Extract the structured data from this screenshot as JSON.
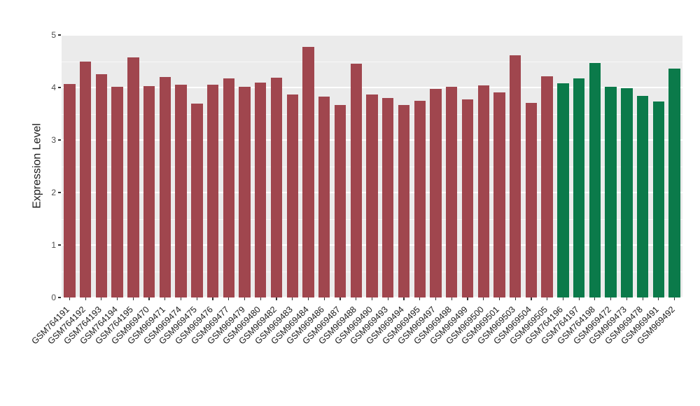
{
  "chart_data": {
    "type": "bar",
    "title": "",
    "xlabel": "",
    "ylabel": "Expression Level",
    "ylim": [
      0,
      5
    ],
    "yticks": [
      0,
      1,
      2,
      3,
      4,
      5
    ],
    "grid": "on",
    "legend": "none",
    "panel_background": "#EBEBEB",
    "gridline_color": "#FFFFFF",
    "categories": [
      "GSM764191",
      "GSM764192",
      "GSM764193",
      "GSM764194",
      "GSM764195",
      "GSM969470",
      "GSM969471",
      "GSM969474",
      "GSM969475",
      "GSM969476",
      "GSM969477",
      "GSM969479",
      "GSM969480",
      "GSM969482",
      "GSM969483",
      "GSM969484",
      "GSM969486",
      "GSM969487",
      "GSM969488",
      "GSM969490",
      "GSM969493",
      "GSM969494",
      "GSM969495",
      "GSM969497",
      "GSM969498",
      "GSM969499",
      "GSM969500",
      "GSM969501",
      "GSM969503",
      "GSM969504",
      "GSM969505",
      "GSM764196",
      "GSM764197",
      "GSM764198",
      "GSM969472",
      "GSM969473",
      "GSM969478",
      "GSM969491",
      "GSM969492"
    ],
    "values": [
      4.07,
      4.5,
      4.25,
      4.01,
      4.58,
      4.03,
      4.2,
      4.06,
      3.7,
      4.06,
      4.18,
      4.02,
      4.1,
      4.19,
      3.87,
      4.78,
      3.83,
      3.67,
      4.45,
      3.87,
      3.8,
      3.67,
      3.75,
      3.98,
      4.02,
      3.77,
      4.04,
      3.91,
      4.61,
      3.71,
      4.21,
      4.08,
      4.18,
      4.47,
      4.02,
      3.99,
      3.84,
      3.73,
      4.36
    ],
    "bar_groups": [
      "group1",
      "group1",
      "group1",
      "group1",
      "group1",
      "group1",
      "group1",
      "group1",
      "group1",
      "group1",
      "group1",
      "group1",
      "group1",
      "group1",
      "group1",
      "group1",
      "group1",
      "group1",
      "group1",
      "group1",
      "group1",
      "group1",
      "group1",
      "group1",
      "group1",
      "group1",
      "group1",
      "group1",
      "group1",
      "group1",
      "group1",
      "group2",
      "group2",
      "group2",
      "group2",
      "group2",
      "group2",
      "group2",
      "group2"
    ],
    "group_colors": {
      "group1": "#A0464E",
      "group2": "#0B7A4A"
    }
  }
}
